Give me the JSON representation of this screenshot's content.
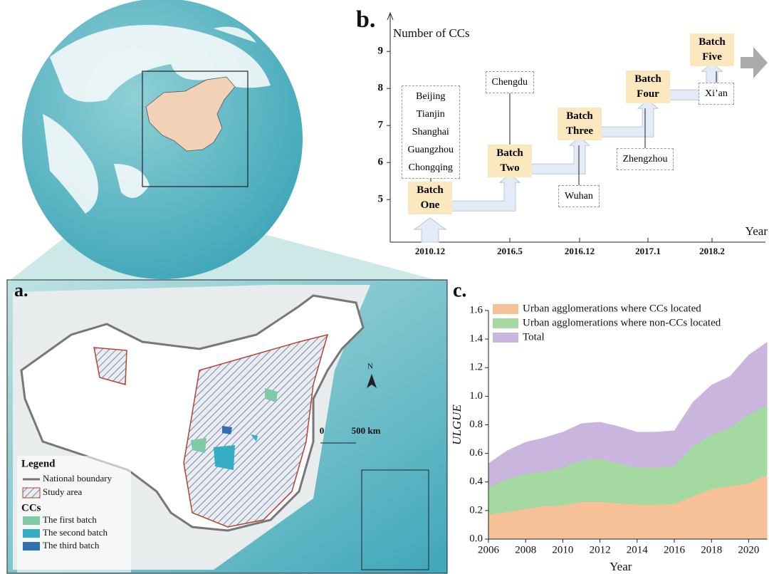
{
  "panels": {
    "a": "a.",
    "b": "b.",
    "c": "c."
  },
  "map": {
    "legend_title": "Legend",
    "legend_items": [
      "National boundary",
      "Study area"
    ],
    "ccs_title": "CCs",
    "ccs_items": [
      {
        "label": "The first batch",
        "color": "#7fcaa5"
      },
      {
        "label": "The second batch",
        "color": "#35aec4"
      },
      {
        "label": "The third batch",
        "color": "#2f6fb2"
      }
    ],
    "north": "N",
    "scale": [
      "0",
      "500 km"
    ]
  },
  "chart_data": [
    {
      "type": "step",
      "y_label": "Number of CCs",
      "x_label": "Year",
      "categories": [
        "2010.12",
        "2016.5",
        "2016.12",
        "2017.1",
        "2018.2"
      ],
      "values": [
        5,
        6,
        7,
        8,
        9
      ],
      "batches": [
        "Batch One",
        "Batch Two",
        "Batch Three",
        "Batch Four",
        "Batch Five"
      ],
      "cities": [
        [
          "Beijing",
          "Tianjin",
          "Shanghai",
          "Guangzhou",
          "Chongqing"
        ],
        [
          "Chengdu"
        ],
        [
          "Wuhan"
        ],
        [
          "Zhengzhou"
        ],
        [
          "Xi’an"
        ]
      ],
      "ylim": [
        3.85,
        9.62
      ],
      "yticks": [
        5,
        6,
        7,
        8,
        9
      ],
      "color": "#fbe8bf"
    },
    {
      "type": "area",
      "x_label": "Year",
      "y_label": "ULGUE",
      "x": [
        2006,
        2007,
        2008,
        2009,
        2010,
        2011,
        2012,
        2013,
        2014,
        2015,
        2016,
        2017,
        2018,
        2019,
        2020,
        2021
      ],
      "series": [
        {
          "name": "Urban agglomerations where CCs located",
          "color": "#f6c196",
          "values": [
            0.17,
            0.19,
            0.21,
            0.23,
            0.235,
            0.26,
            0.26,
            0.25,
            0.24,
            0.24,
            0.245,
            0.3,
            0.35,
            0.37,
            0.39,
            0.45
          ]
        },
        {
          "name": "Urban agglomerations where non-CCs located",
          "color": "#a5d9a2",
          "values": [
            0.36,
            0.42,
            0.46,
            0.47,
            0.5,
            0.55,
            0.56,
            0.53,
            0.5,
            0.5,
            0.51,
            0.65,
            0.73,
            0.78,
            0.87,
            0.94
          ]
        },
        {
          "name": "Total",
          "color": "#c9b5de",
          "values": [
            0.53,
            0.62,
            0.68,
            0.71,
            0.75,
            0.81,
            0.82,
            0.79,
            0.75,
            0.75,
            0.76,
            0.96,
            1.08,
            1.14,
            1.29,
            1.38
          ]
        }
      ],
      "xlim": [
        2006,
        2021
      ],
      "xticks": [
        2006,
        2008,
        2010,
        2012,
        2014,
        2016,
        2018,
        2020
      ],
      "ylim": [
        0,
        1.6
      ],
      "yticks": [
        {
          "value": 0,
          "label": "0.0"
        },
        0.2,
        0.4,
        0.6,
        0.8,
        {
          "value": 1,
          "label": "1.0"
        },
        1.2,
        1.4,
        1.6
      ]
    }
  ]
}
